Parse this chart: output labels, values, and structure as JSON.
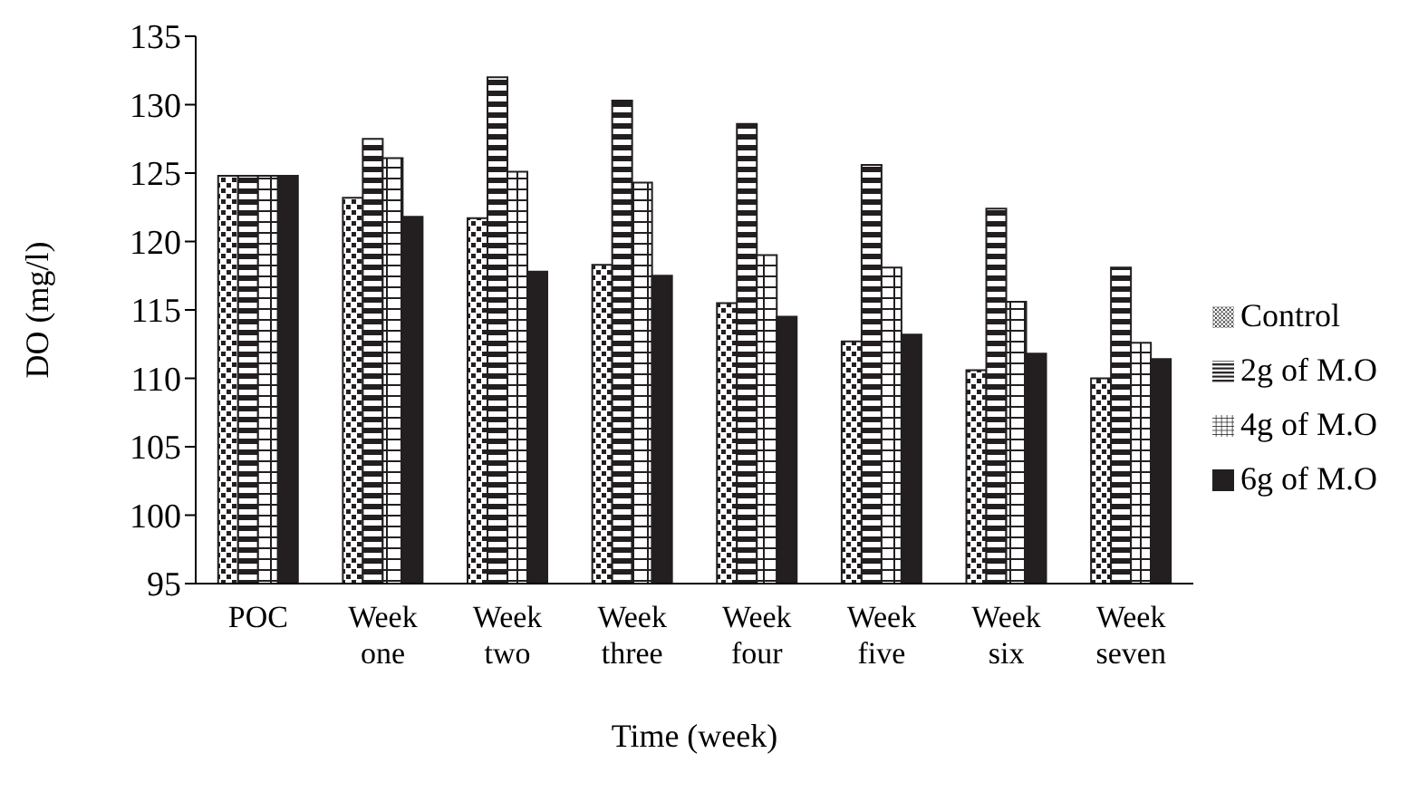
{
  "chart_data": {
    "type": "bar",
    "xlabel": "Time (week)",
    "ylabel": "DO (mg/l)",
    "categories": [
      "POC",
      "Week one",
      "Week two",
      "Week three",
      "Week four",
      "Week five",
      "Week six",
      "Week seven"
    ],
    "series": [
      {
        "name": "Control",
        "color": "#231f20",
        "values": [
          124.8,
          123.2,
          121.7,
          118.3,
          115.5,
          112.7,
          110.6,
          110
        ]
      },
      {
        "name": "2g of M.O",
        "color": "#231f20",
        "values": [
          124.8,
          127.5,
          132,
          130.3,
          128.6,
          125.6,
          122.4,
          118.1
        ]
      },
      {
        "name": "4g of M.O",
        "color": "#231f20",
        "values": [
          124.8,
          126.1,
          125.1,
          124.3,
          119,
          118.1,
          115.6,
          112.6
        ]
      },
      {
        "name": "6g of M.O",
        "color": "#231f20",
        "values": [
          124.8,
          121.8,
          117.8,
          117.5,
          114.5,
          113.2,
          111.8,
          111.4
        ]
      }
    ],
    "ylim": [
      95,
      135
    ],
    "yticks": [
      95,
      100,
      105,
      110,
      115,
      120,
      125,
      130,
      135
    ],
    "grid": false,
    "legend": "right"
  }
}
